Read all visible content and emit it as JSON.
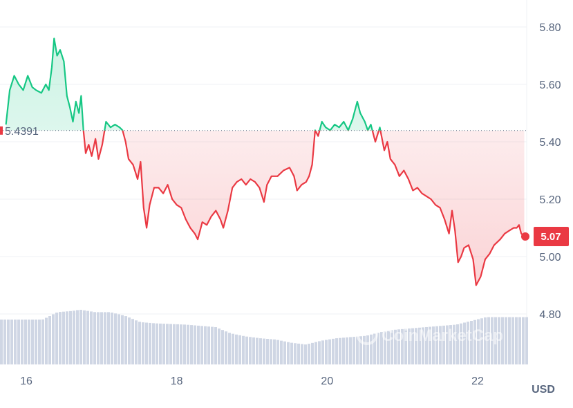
{
  "chart_data": {
    "type": "line",
    "currency": "USD",
    "reference_value": 5.4391,
    "reference_label": "5.4391",
    "last_value": 5.07,
    "last_label": "5.07",
    "ylim": [
      4.6,
      5.9
    ],
    "y_ticks": [
      {
        "value": 5.8,
        "label": "5.80"
      },
      {
        "value": 5.6,
        "label": "5.60"
      },
      {
        "value": 5.4,
        "label": "5.40"
      },
      {
        "value": 5.2,
        "label": "5.20"
      },
      {
        "value": 5.0,
        "label": "5.00"
      },
      {
        "value": 4.8,
        "label": "4.80"
      }
    ],
    "x_ticks": [
      {
        "value": 16,
        "label": "16"
      },
      {
        "value": 18,
        "label": "18"
      },
      {
        "value": 20,
        "label": "20"
      },
      {
        "value": 22,
        "label": "22"
      }
    ],
    "xlim": [
      15.63,
      22.63
    ],
    "grid": true,
    "colors": {
      "up": "#16c784",
      "down": "#ea3943",
      "volume": "#cfd6e4",
      "grid": "#eff2f5",
      "axis_text": "#58667e"
    },
    "series": [
      {
        "values": [
          [
            15.73,
            5.46
          ],
          [
            15.78,
            5.58
          ],
          [
            15.84,
            5.63
          ],
          [
            15.9,
            5.6
          ],
          [
            15.96,
            5.58
          ],
          [
            16.02,
            5.63
          ],
          [
            16.08,
            5.59
          ],
          [
            16.13,
            5.58
          ],
          [
            16.2,
            5.57
          ],
          [
            16.26,
            5.6
          ],
          [
            16.3,
            5.58
          ],
          [
            16.34,
            5.66
          ],
          [
            16.37,
            5.76
          ],
          [
            16.41,
            5.7
          ],
          [
            16.45,
            5.72
          ],
          [
            16.5,
            5.68
          ],
          [
            16.54,
            5.56
          ],
          [
            16.58,
            5.52
          ],
          [
            16.62,
            5.47
          ],
          [
            16.66,
            5.54
          ],
          [
            16.7,
            5.5
          ],
          [
            16.73,
            5.56
          ],
          [
            16.76,
            5.44
          ],
          [
            16.79,
            5.36
          ],
          [
            16.83,
            5.39
          ],
          [
            16.87,
            5.35
          ],
          [
            16.92,
            5.41
          ],
          [
            16.96,
            5.34
          ],
          [
            17.01,
            5.39
          ],
          [
            17.06,
            5.47
          ],
          [
            17.12,
            5.45
          ],
          [
            17.18,
            5.46
          ],
          [
            17.24,
            5.45
          ],
          [
            17.28,
            5.44
          ],
          [
            17.32,
            5.4
          ],
          [
            17.36,
            5.34
          ],
          [
            17.42,
            5.32
          ],
          [
            17.48,
            5.27
          ],
          [
            17.52,
            5.33
          ],
          [
            17.56,
            5.17
          ],
          [
            17.6,
            5.1
          ],
          [
            17.64,
            5.18
          ],
          [
            17.7,
            5.24
          ],
          [
            17.76,
            5.24
          ],
          [
            17.82,
            5.22
          ],
          [
            17.88,
            5.25
          ],
          [
            17.94,
            5.2
          ],
          [
            18.0,
            5.18
          ],
          [
            18.06,
            5.17
          ],
          [
            18.12,
            5.13
          ],
          [
            18.18,
            5.1
          ],
          [
            18.24,
            5.08
          ],
          [
            18.28,
            5.06
          ],
          [
            18.34,
            5.12
          ],
          [
            18.4,
            5.11
          ],
          [
            18.46,
            5.14
          ],
          [
            18.52,
            5.16
          ],
          [
            18.58,
            5.13
          ],
          [
            18.62,
            5.1
          ],
          [
            18.68,
            5.16
          ],
          [
            18.74,
            5.24
          ],
          [
            18.8,
            5.26
          ],
          [
            18.86,
            5.27
          ],
          [
            18.92,
            5.25
          ],
          [
            18.98,
            5.27
          ],
          [
            19.04,
            5.26
          ],
          [
            19.1,
            5.24
          ],
          [
            19.16,
            5.19
          ],
          [
            19.2,
            5.25
          ],
          [
            19.26,
            5.28
          ],
          [
            19.34,
            5.28
          ],
          [
            19.42,
            5.3
          ],
          [
            19.5,
            5.31
          ],
          [
            19.56,
            5.28
          ],
          [
            19.6,
            5.23
          ],
          [
            19.66,
            5.25
          ],
          [
            19.72,
            5.26
          ],
          [
            19.76,
            5.28
          ],
          [
            19.8,
            5.32
          ],
          [
            19.84,
            5.44
          ],
          [
            19.88,
            5.42
          ],
          [
            19.93,
            5.47
          ],
          [
            19.98,
            5.45
          ],
          [
            20.04,
            5.44
          ],
          [
            20.1,
            5.46
          ],
          [
            20.16,
            5.45
          ],
          [
            20.22,
            5.47
          ],
          [
            20.28,
            5.44
          ],
          [
            20.34,
            5.48
          ],
          [
            20.4,
            5.54
          ],
          [
            20.44,
            5.5
          ],
          [
            20.5,
            5.47
          ],
          [
            20.54,
            5.44
          ],
          [
            20.58,
            5.46
          ],
          [
            20.64,
            5.4
          ],
          [
            20.7,
            5.45
          ],
          [
            20.76,
            5.37
          ],
          [
            20.8,
            5.4
          ],
          [
            20.84,
            5.34
          ],
          [
            20.9,
            5.32
          ],
          [
            20.96,
            5.28
          ],
          [
            21.02,
            5.3
          ],
          [
            21.08,
            5.27
          ],
          [
            21.14,
            5.23
          ],
          [
            21.2,
            5.24
          ],
          [
            21.26,
            5.22
          ],
          [
            21.32,
            5.21
          ],
          [
            21.38,
            5.2
          ],
          [
            21.44,
            5.18
          ],
          [
            21.5,
            5.17
          ],
          [
            21.56,
            5.13
          ],
          [
            21.62,
            5.08
          ],
          [
            21.66,
            5.16
          ],
          [
            21.7,
            5.09
          ],
          [
            21.74,
            4.98
          ],
          [
            21.78,
            5.0
          ],
          [
            21.82,
            5.03
          ],
          [
            21.88,
            5.04
          ],
          [
            21.94,
            4.99
          ],
          [
            21.98,
            4.9
          ],
          [
            22.04,
            4.93
          ],
          [
            22.1,
            4.99
          ],
          [
            22.16,
            5.01
          ],
          [
            22.22,
            5.04
          ],
          [
            22.3,
            5.06
          ],
          [
            22.36,
            5.08
          ],
          [
            22.42,
            5.09
          ],
          [
            22.48,
            5.1
          ],
          [
            22.52,
            5.1
          ],
          [
            22.55,
            5.11
          ],
          [
            22.58,
            5.08
          ],
          [
            22.62,
            5.07
          ]
        ]
      }
    ],
    "volume": [
      [
        15.63,
        0.72
      ],
      [
        15.8,
        0.72
      ],
      [
        16.0,
        0.72
      ],
      [
        16.2,
        0.72
      ],
      [
        16.4,
        0.84
      ],
      [
        16.6,
        0.86
      ],
      [
        16.7,
        0.88
      ],
      [
        16.9,
        0.84
      ],
      [
        17.1,
        0.84
      ],
      [
        17.3,
        0.78
      ],
      [
        17.5,
        0.68
      ],
      [
        17.7,
        0.66
      ],
      [
        17.9,
        0.65
      ],
      [
        18.1,
        0.64
      ],
      [
        18.3,
        0.62
      ],
      [
        18.5,
        0.6
      ],
      [
        18.7,
        0.5
      ],
      [
        18.9,
        0.45
      ],
      [
        19.1,
        0.42
      ],
      [
        19.3,
        0.4
      ],
      [
        19.5,
        0.35
      ],
      [
        19.7,
        0.32
      ],
      [
        19.9,
        0.38
      ],
      [
        20.1,
        0.42
      ],
      [
        20.3,
        0.44
      ],
      [
        20.5,
        0.46
      ],
      [
        20.7,
        0.52
      ],
      [
        20.9,
        0.56
      ],
      [
        21.1,
        0.58
      ],
      [
        21.3,
        0.6
      ],
      [
        21.5,
        0.62
      ],
      [
        21.7,
        0.64
      ],
      [
        21.9,
        0.7
      ],
      [
        22.1,
        0.76
      ],
      [
        22.3,
        0.76
      ],
      [
        22.5,
        0.76
      ],
      [
        22.63,
        0.76
      ]
    ],
    "watermark": "CoinMarketCap"
  }
}
